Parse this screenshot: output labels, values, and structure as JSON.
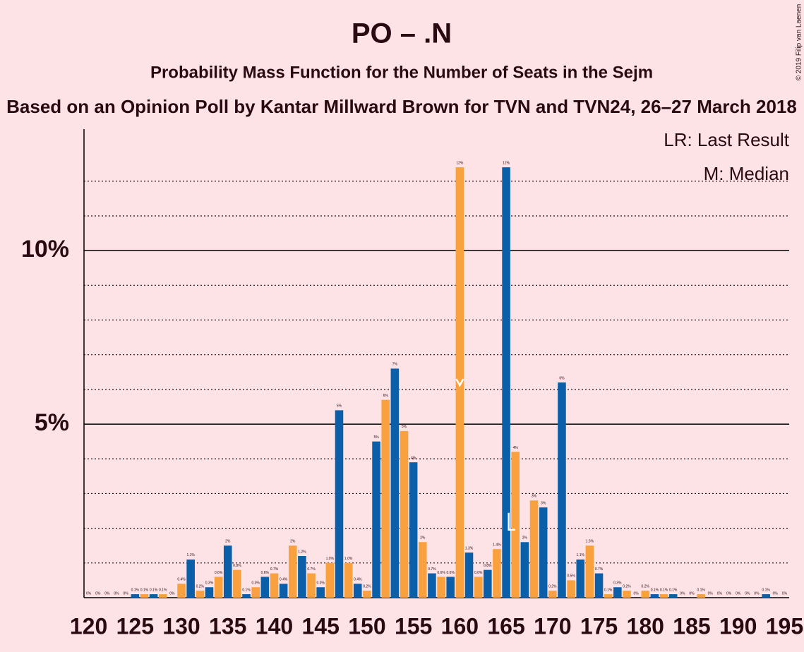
{
  "chart_data": {
    "type": "bar",
    "title": "PO – .N",
    "subtitle": "Probability Mass Function for the Number of Seats in the Sejm",
    "source": "Based on an Opinion Poll by Kantar Millward Brown for TVN and TVN24, 26–27 March 2018",
    "copyright": "© 2019 Filip van Laenen",
    "legend_lr": "LR: Last Result",
    "legend_median": "M: Median",
    "last_result": 166,
    "median": 160,
    "x": [
      120,
      121,
      122,
      123,
      124,
      125,
      126,
      127,
      128,
      129,
      130,
      131,
      132,
      133,
      134,
      135,
      136,
      137,
      138,
      139,
      140,
      141,
      142,
      143,
      144,
      145,
      146,
      147,
      148,
      149,
      150,
      151,
      152,
      153,
      154,
      155,
      156,
      157,
      158,
      159,
      160,
      161,
      162,
      163,
      164,
      165,
      166,
      167,
      168,
      169,
      170,
      171,
      172,
      173,
      174,
      175,
      176,
      177,
      178,
      179,
      180,
      181,
      182,
      183,
      184,
      185,
      186,
      187,
      188,
      189,
      190,
      191,
      192,
      193,
      194,
      195
    ],
    "values": [
      0,
      0,
      0,
      0,
      0,
      0.1,
      0.1,
      0.1,
      0.1,
      0,
      0.4,
      1.1,
      0.2,
      0.3,
      0.6,
      1.5,
      0.8,
      0.1,
      0.3,
      0.6,
      0.7,
      0.4,
      1.5,
      1.2,
      0.7,
      0.3,
      1.0,
      5.4,
      1.0,
      0.4,
      0.2,
      4.5,
      5.7,
      6.6,
      4.8,
      3.9,
      1.6,
      0.7,
      0.6,
      0.6,
      12.4,
      1.3,
      0.6,
      0.8,
      1.4,
      12.4,
      4.2,
      1.6,
      2.8,
      2.6,
      0.2,
      6.2,
      0.5,
      1.1,
      1.5,
      0.7,
      0.1,
      0.3,
      0.2,
      0,
      0.2,
      0.1,
      0.1,
      0.1,
      0,
      0,
      0.1,
      0,
      0,
      0,
      0,
      0,
      0,
      0.1,
      0,
      0
    ],
    "value_labels": [
      "0%",
      "0%",
      "0%",
      "0%",
      "0%",
      "0.1%",
      "0.1%",
      "0.1%",
      "0.1%",
      "0%",
      "0.4%",
      "1.1%",
      "0.2%",
      "0.3%",
      "0.6%",
      "2%",
      "0.8%",
      "0.1%",
      "0.3%",
      "0.6%",
      "0.7%",
      "0.4%",
      "2%",
      "1.2%",
      "0.7%",
      "0.3%",
      "1.0%",
      "5%",
      "1.0%",
      "0.4%",
      "0.2%",
      "5%",
      "6%",
      "7%",
      "5%",
      "4%",
      "2%",
      "0.7%",
      "0.6%",
      "0.6%",
      "12%",
      "1.3%",
      "0.6%",
      "0.8%",
      "1.4%",
      "12%",
      "4%",
      "2%",
      "3%",
      "3%",
      "0.2%",
      "6%",
      "0.5%",
      "1.1%",
      "1.5%",
      "0.7%",
      "0.1%",
      "0.3%",
      "0.2%",
      "0%",
      "0.2%",
      "0.1%",
      "0.1%",
      "0.1%",
      "0%",
      "0%",
      "0.1%",
      "0%",
      "0%",
      "0%",
      "0%",
      "0%",
      "0%",
      "0.1%",
      "0%",
      "0%"
    ],
    "colors": [
      "#f9a03f",
      "#0b5ea8"
    ],
    "xlim": [
      119.5,
      195.5
    ],
    "xticks": [
      120,
      125,
      130,
      135,
      140,
      145,
      150,
      155,
      160,
      165,
      170,
      175,
      180,
      185,
      190,
      195
    ],
    "ylim": [
      0,
      13.5
    ],
    "yticks": [
      {
        "value": 5,
        "label": "5%"
      },
      {
        "value": 10,
        "label": "10%"
      }
    ],
    "minor_yticks": [
      1,
      2,
      3,
      4,
      6,
      7,
      8,
      9,
      11,
      12
    ]
  }
}
